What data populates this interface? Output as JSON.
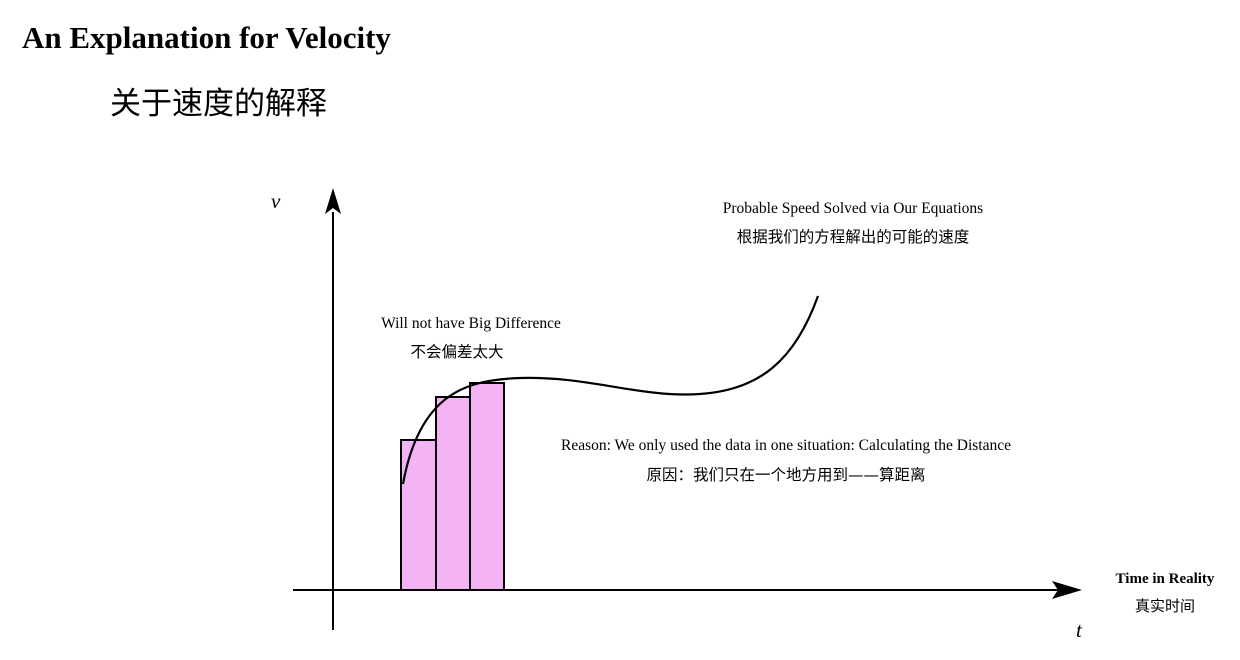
{
  "title": {
    "en": "An Explanation for Velocity",
    "zh": "关于速度的解释"
  },
  "axes": {
    "y_label": "v",
    "x_label": "t",
    "x_name_en": "Time in Reality",
    "x_name_zh": "真实时间"
  },
  "annotations": {
    "curve_en": "Probable Speed Solved via Our Equations",
    "curve_zh": "根据我们的方程解出的可能的速度",
    "bars_en": "Will not have Big Difference",
    "bars_zh": "不会偏差太大",
    "reason_en": "Reason: We only used the data in one situation: Calculating the Distance",
    "reason_zh": "原因：我们只在一个地方用到——算距离"
  },
  "colors": {
    "bar_fill": "#f4b3f4",
    "stroke": "#000000"
  }
}
